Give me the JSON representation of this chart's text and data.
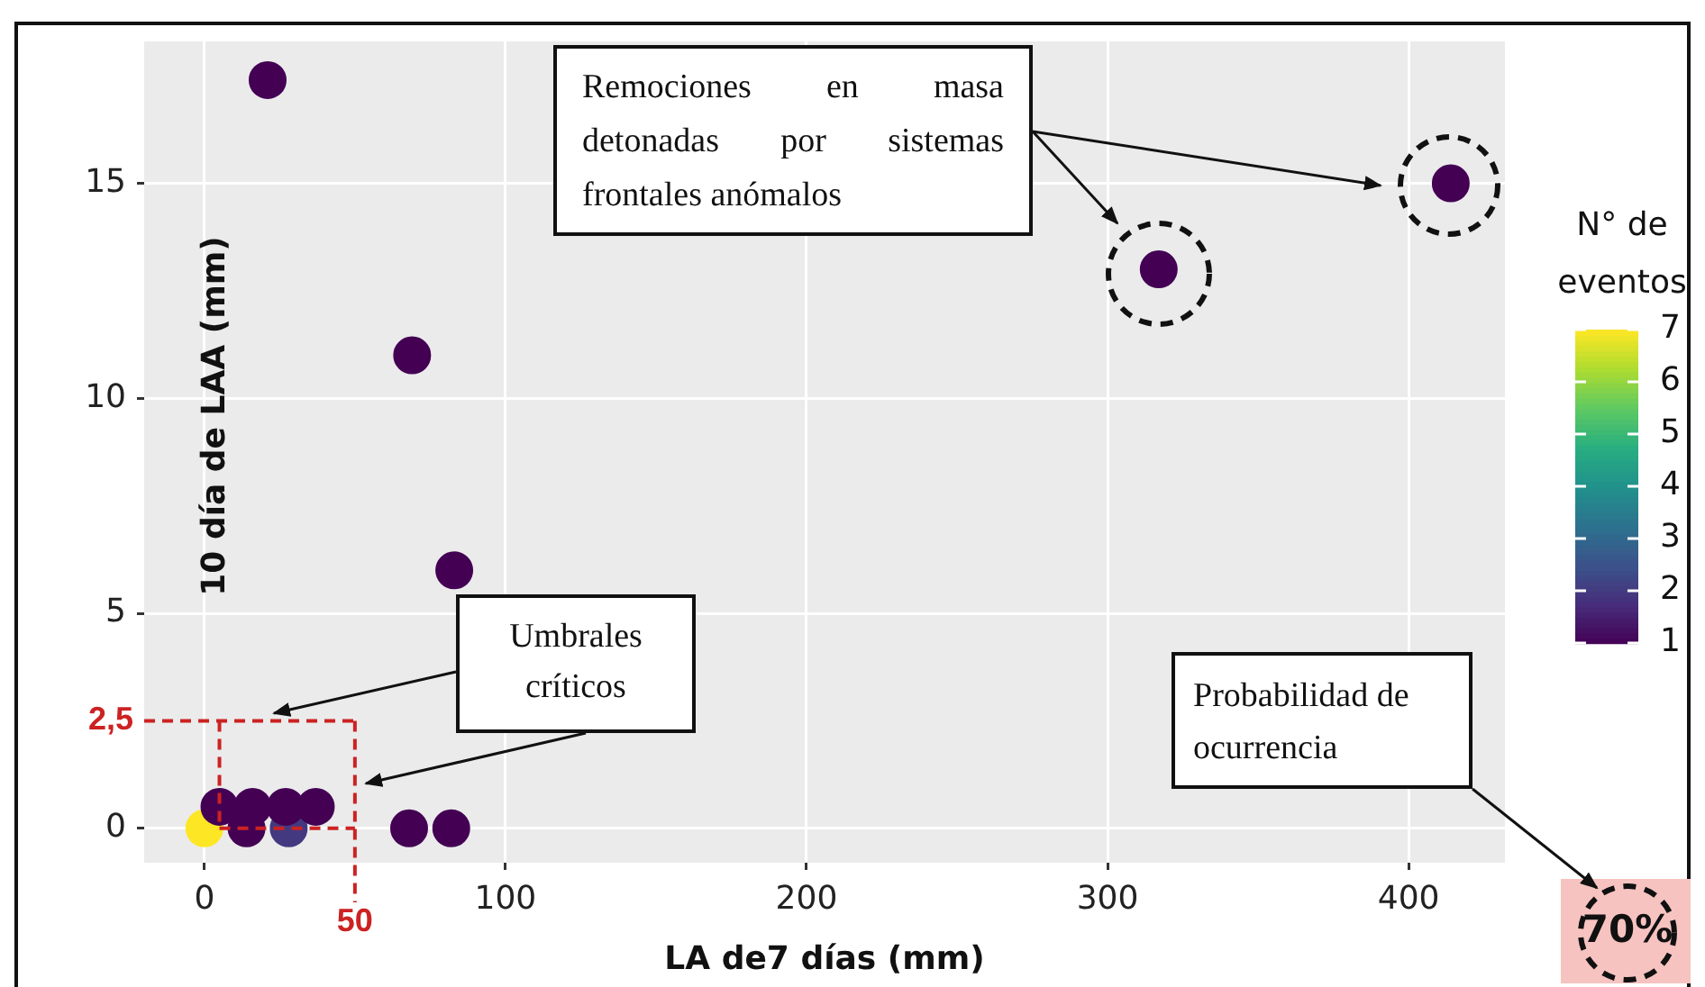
{
  "chart_data": {
    "type": "scatter",
    "xlabel": "LA de7 días (mm)",
    "ylabel": "10 día de LAA (mm)",
    "clabel": "N° de eventos",
    "x": [
      0,
      14,
      28,
      68,
      82,
      5,
      16,
      27,
      37,
      21,
      69,
      83,
      317,
      414
    ],
    "values": [
      0,
      0,
      0,
      0,
      0,
      0.5,
      0.5,
      0.5,
      0.5,
      17.4,
      11,
      6,
      13,
      15
    ],
    "cvalues": [
      7,
      1,
      2,
      1,
      1,
      1,
      1,
      1,
      1,
      1,
      1,
      1,
      1,
      1
    ],
    "clim": [
      1,
      7
    ],
    "cticks": [
      1,
      2,
      3,
      4,
      5,
      6,
      7
    ],
    "xlim": [
      -20,
      432
    ],
    "xticks": [
      0,
      100,
      200,
      300,
      400
    ],
    "ylim": [
      -0.8,
      18.3
    ],
    "yticks": [
      0,
      5,
      10,
      15
    ],
    "grid": true,
    "legend": false,
    "ref_lines": [
      {
        "axis": "x",
        "value": 50,
        "label": "50",
        "color": "#cc2222",
        "line_style": "dashed"
      },
      {
        "axis": "y",
        "value": 2.5,
        "label": "2,5",
        "color": "#cc2222",
        "line_style": "dashed"
      },
      {
        "axis": "x",
        "value": 5,
        "color": "#cc2222",
        "line_style": "dashed"
      },
      {
        "axis": "y",
        "value": 0,
        "color": "#cc2222",
        "line_style": "dashed"
      }
    ],
    "annotations": [
      "Remociones en masa detonadas por sistemas frontales anómalos",
      "Umbrales críticos",
      "Probabilidad de ocurrencia",
      "70%"
    ]
  }
}
